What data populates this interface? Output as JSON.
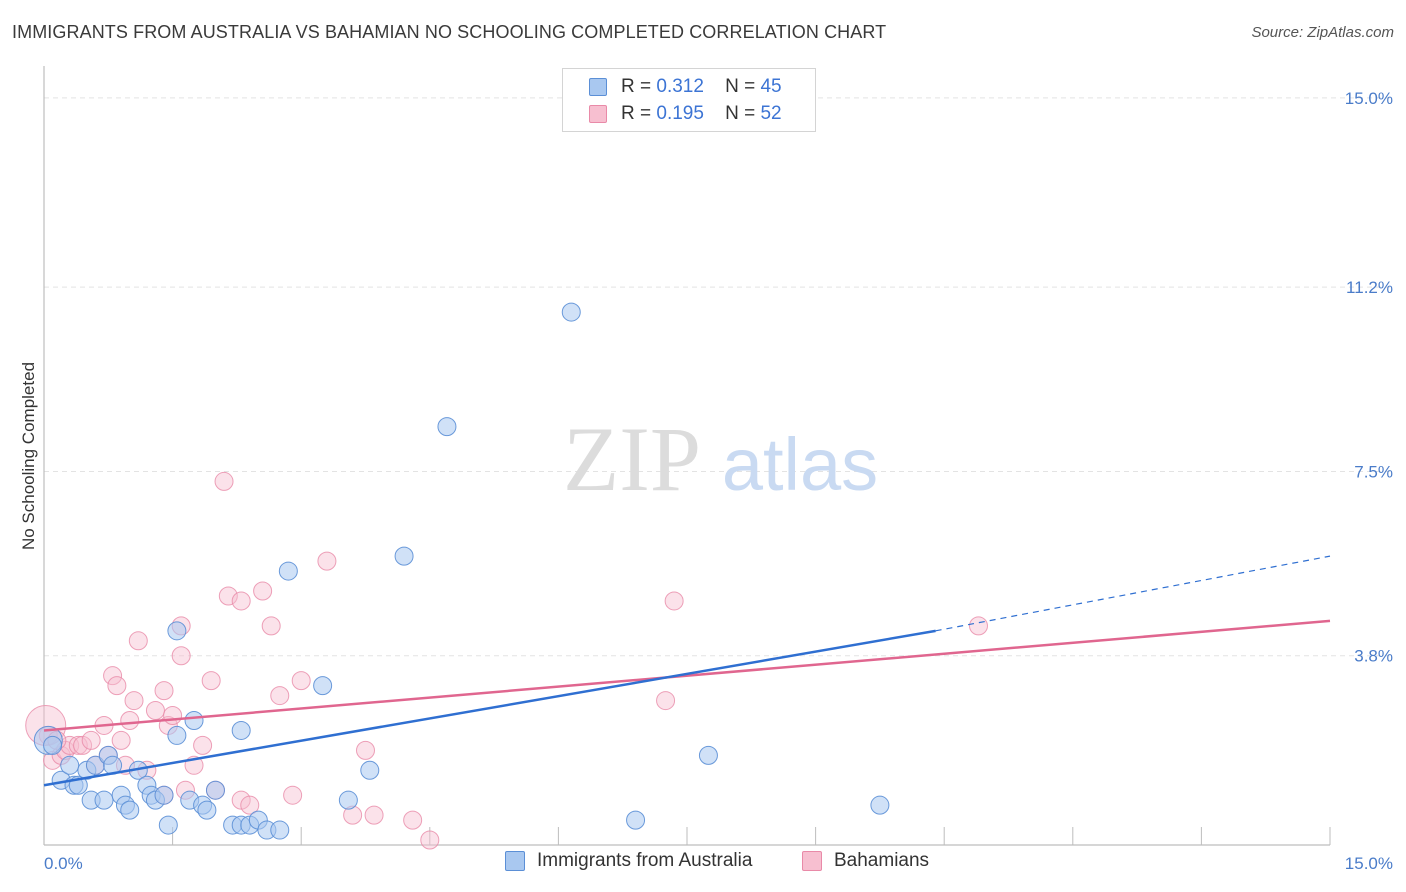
{
  "title": "IMMIGRANTS FROM AUSTRALIA VS BAHAMIAN NO SCHOOLING COMPLETED CORRELATION CHART",
  "source": "Source: ZipAtlas.com",
  "watermark": {
    "zip": "ZIP",
    "atlas": "atlas"
  },
  "legend": {
    "rows": [
      {
        "r_label": "R =",
        "r_value": "0.312",
        "n_label": "N =",
        "n_value": "45"
      },
      {
        "r_label": "R =",
        "r_value": "0.195",
        "n_label": "N =",
        "n_value": "52"
      }
    ]
  },
  "bottom_legend": {
    "series1": "Immigrants from Australia",
    "series2": "Bahamians"
  },
  "colors": {
    "blue_fill": "#a9c8f0",
    "blue_stroke": "#5b8fd6",
    "blue_line": "#2f6fd1",
    "pink_fill": "#f7bfd0",
    "pink_stroke": "#e98aa8",
    "pink_line": "#e0668f",
    "tick_text": "#4a7cc9",
    "grid": "#e3e3e3"
  },
  "chart_data": {
    "type": "scatter",
    "title": "IMMIGRANTS FROM AUSTRALIA VS BAHAMIAN NO SCHOOLING COMPLETED CORRELATION CHART",
    "xlabel": "",
    "ylabel": "No Schooling Completed",
    "xlim": [
      0,
      15
    ],
    "ylim": [
      0,
      15.4
    ],
    "x_tick_labels": [
      "0.0%",
      "15.0%"
    ],
    "y_ticks": [
      3.8,
      7.5,
      11.2,
      15.0
    ],
    "y_tick_labels": [
      "3.8%",
      "7.5%",
      "11.2%",
      "15.0%"
    ],
    "grid": true,
    "legend_position": "top-center",
    "series": [
      {
        "name": "Immigrants from Australia",
        "color": "#5b8fd6",
        "r": 0.312,
        "n": 45,
        "trend": {
          "x": [
            0,
            10.4
          ],
          "y": [
            1.2,
            4.3
          ],
          "dashed_to": [
            15.0,
            5.8
          ]
        },
        "points": [
          [
            0.05,
            2.1
          ],
          [
            0.1,
            2.0
          ],
          [
            0.2,
            1.3
          ],
          [
            0.3,
            1.6
          ],
          [
            0.35,
            1.2
          ],
          [
            0.4,
            1.2
          ],
          [
            0.5,
            1.5
          ],
          [
            0.55,
            0.9
          ],
          [
            0.6,
            1.6
          ],
          [
            0.7,
            0.9
          ],
          [
            0.75,
            1.8
          ],
          [
            0.8,
            1.6
          ],
          [
            0.9,
            1.0
          ],
          [
            0.95,
            0.8
          ],
          [
            1.0,
            0.7
          ],
          [
            1.1,
            1.5
          ],
          [
            1.2,
            1.2
          ],
          [
            1.25,
            1.0
          ],
          [
            1.3,
            0.9
          ],
          [
            1.4,
            1.0
          ],
          [
            1.45,
            0.4
          ],
          [
            1.55,
            2.2
          ],
          [
            1.55,
            4.3
          ],
          [
            1.7,
            0.9
          ],
          [
            1.75,
            2.5
          ],
          [
            1.85,
            0.8
          ],
          [
            1.9,
            0.7
          ],
          [
            2.0,
            1.1
          ],
          [
            2.2,
            0.4
          ],
          [
            2.3,
            0.4
          ],
          [
            2.3,
            2.3
          ],
          [
            2.4,
            0.4
          ],
          [
            2.5,
            0.5
          ],
          [
            2.6,
            0.3
          ],
          [
            2.75,
            0.3
          ],
          [
            2.85,
            5.5
          ],
          [
            3.25,
            3.2
          ],
          [
            3.55,
            0.9
          ],
          [
            3.8,
            1.5
          ],
          [
            4.2,
            5.8
          ],
          [
            4.7,
            8.4
          ],
          [
            6.15,
            10.7
          ],
          [
            6.9,
            0.5
          ],
          [
            7.75,
            1.8
          ],
          [
            9.75,
            0.8
          ]
        ]
      },
      {
        "name": "Bahamians",
        "color": "#e98aa8",
        "r": 0.195,
        "n": 52,
        "trend": {
          "x": [
            0,
            15.0
          ],
          "y": [
            2.3,
            4.5
          ]
        },
        "points": [
          [
            0.05,
            2.2
          ],
          [
            0.1,
            1.7
          ],
          [
            0.2,
            1.8
          ],
          [
            0.25,
            1.9
          ],
          [
            0.3,
            2.0
          ],
          [
            0.4,
            2.0
          ],
          [
            0.45,
            2.0
          ],
          [
            0.55,
            2.1
          ],
          [
            0.6,
            1.6
          ],
          [
            0.7,
            2.4
          ],
          [
            0.75,
            1.8
          ],
          [
            0.8,
            3.4
          ],
          [
            0.85,
            3.2
          ],
          [
            0.9,
            2.1
          ],
          [
            0.95,
            1.6
          ],
          [
            1.0,
            2.5
          ],
          [
            1.05,
            2.9
          ],
          [
            1.1,
            4.1
          ],
          [
            1.2,
            1.5
          ],
          [
            1.3,
            2.7
          ],
          [
            1.4,
            3.1
          ],
          [
            1.4,
            1.0
          ],
          [
            1.45,
            2.4
          ],
          [
            1.5,
            2.6
          ],
          [
            1.6,
            4.4
          ],
          [
            1.6,
            3.8
          ],
          [
            1.65,
            1.1
          ],
          [
            1.75,
            1.6
          ],
          [
            1.85,
            2.0
          ],
          [
            1.95,
            3.3
          ],
          [
            2.0,
            1.1
          ],
          [
            2.1,
            7.3
          ],
          [
            2.15,
            5.0
          ],
          [
            2.3,
            4.9
          ],
          [
            2.3,
            0.9
          ],
          [
            2.4,
            0.8
          ],
          [
            2.55,
            5.1
          ],
          [
            2.65,
            4.4
          ],
          [
            2.75,
            3.0
          ],
          [
            2.9,
            1.0
          ],
          [
            3.0,
            3.3
          ],
          [
            3.3,
            5.7
          ],
          [
            3.6,
            0.6
          ],
          [
            3.75,
            1.9
          ],
          [
            3.85,
            0.6
          ],
          [
            4.3,
            0.5
          ],
          [
            4.5,
            0.1
          ],
          [
            7.25,
            2.9
          ],
          [
            7.35,
            4.9
          ],
          [
            10.9,
            4.4
          ],
          [
            0.02,
            2.4
          ],
          [
            0.15,
            2.1
          ]
        ]
      }
    ]
  }
}
